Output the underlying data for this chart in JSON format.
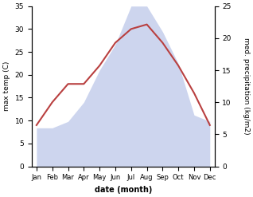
{
  "months": [
    "Jan",
    "Feb",
    "Mar",
    "Apr",
    "May",
    "Jun",
    "Jul",
    "Aug",
    "Sep",
    "Oct",
    "Nov",
    "Dec"
  ],
  "temperature": [
    9,
    14,
    18,
    18,
    22,
    27,
    30,
    31,
    27,
    22,
    16,
    9
  ],
  "precipitation": [
    6,
    6,
    7,
    10,
    15,
    19,
    25,
    25,
    21,
    16,
    8,
    7
  ],
  "temp_color": "#b94040",
  "precip_color": "#b8c4e8",
  "ylim_temp": [
    0,
    35
  ],
  "ylim_precip": [
    0,
    25
  ],
  "ylabel_left": "max temp (C)",
  "ylabel_right": "med. precipitation (kg/m2)",
  "xlabel": "date (month)",
  "yticks_left": [
    0,
    5,
    10,
    15,
    20,
    25,
    30,
    35
  ],
  "yticks_right": [
    0,
    5,
    10,
    15,
    20,
    25
  ],
  "background_color": "#ffffff"
}
